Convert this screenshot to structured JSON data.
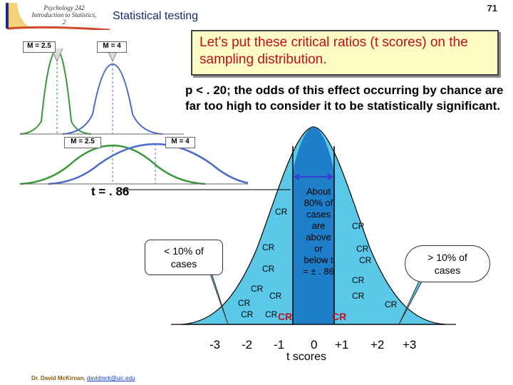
{
  "header": {
    "course": "Psychology 242 Introduction to Statistics, 2",
    "title": "Statistical testing",
    "slide_number": "71"
  },
  "callout": {
    "text": "Let’s put these critical ratios (t scores) on the sampling distribution."
  },
  "note": "p < . 20; the odds of this effect occurring by chance are far too high to consider it to be statistically significant.",
  "small_diagrams": {
    "top_left_labels": [
      "M = 2.5",
      "M = 4"
    ],
    "mid_left_labels": [
      "M = 2.5",
      "M = 4"
    ]
  },
  "t_value_label": "t = . 86",
  "left_box": {
    "line1": "< 10% of",
    "line2": "cases"
  },
  "right_box": {
    "line1": "> 10% of",
    "line2": "cases"
  },
  "center_text": {
    "lines": [
      "About",
      "80% of",
      "cases",
      "are",
      "above",
      "or",
      "below t",
      "= ± . 86"
    ]
  },
  "cr_label": "CR",
  "cr_bold_label": "CR",
  "axis": {
    "ticks": [
      "-3",
      "-2",
      "-1",
      "0",
      "+1",
      "+2",
      "+3"
    ],
    "title": "t scores"
  },
  "author": {
    "name": "Dr. David McKirnan,",
    "email": "davidmck@uic.edu"
  },
  "colors": {
    "curve_fill": "#5cc8e8",
    "center_fill": "#1e7ec8",
    "callout_bg": "#fffbc4",
    "callout_text": "#c0101a",
    "curve_green": "#3a9a3a",
    "curve_blue": "#4a6ad0"
  }
}
